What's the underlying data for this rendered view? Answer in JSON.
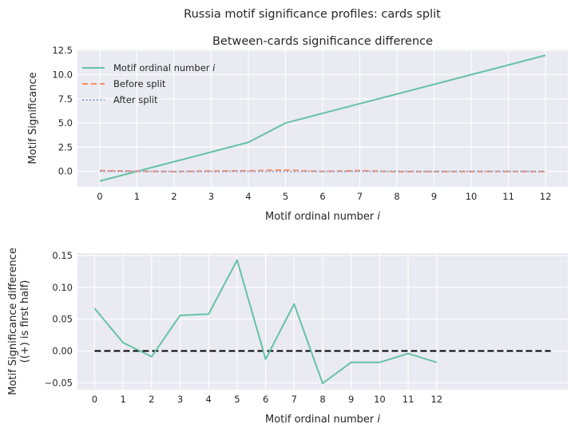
{
  "suptitle": "Russia motif significance profiles: cards split",
  "chart_data": [
    {
      "type": "line",
      "title": "Between-cards significance difference",
      "xlabel_text": "Motif ordinal number ",
      "xlabel_var": "i",
      "ylabel": "Motif Significance",
      "x": [
        0,
        1,
        2,
        3,
        4,
        5,
        6,
        7,
        8,
        9,
        10,
        11,
        12
      ],
      "xlim": [
        -0.6,
        12.6
      ],
      "ylim": [
        -1.6,
        12.6
      ],
      "xticks": [
        "0",
        "1",
        "2",
        "3",
        "4",
        "5",
        "6",
        "7",
        "8",
        "9",
        "10",
        "11",
        "12"
      ],
      "yticks": [
        {
          "v": 0,
          "label": "0.0"
        },
        {
          "v": 2.5,
          "label": "2.5"
        },
        {
          "v": 5,
          "label": "5.0"
        },
        {
          "v": 7.5,
          "label": "7.5"
        },
        {
          "v": 10,
          "label": "10.0"
        },
        {
          "v": 12.5,
          "label": "12.5"
        }
      ],
      "grid": true,
      "legend_position": "upper-left",
      "series": [
        {
          "name_text": "Motif ordinal number ",
          "name_var": "i",
          "color": "#66c2a5",
          "dash": "",
          "values": [
            -1,
            0,
            1,
            2,
            3,
            5,
            6,
            7,
            8,
            9,
            10,
            11,
            12
          ]
        },
        {
          "name_text": "Before split",
          "name_var": "",
          "color": "#fc8d62",
          "dash": "7 4",
          "values": [
            0.08,
            0.02,
            -0.02,
            0.04,
            0.06,
            0.14,
            -0.01,
            0.08,
            -0.04,
            -0.02,
            -0.02,
            -0.01,
            -0.02
          ]
        },
        {
          "name_text": "After split",
          "name_var": "",
          "color": "#8da0cb",
          "dash": "2 2.5",
          "values": [
            0.01,
            0.0,
            -0.01,
            -0.01,
            0.0,
            -0.01,
            0.0,
            0.0,
            0.01,
            0.0,
            0.0,
            0.0,
            0.0
          ]
        }
      ]
    },
    {
      "type": "line",
      "title": "",
      "xlabel_text": "Motif ordinal number ",
      "xlabel_var": "i",
      "ylabel_lines": [
        "Motif Significance difference",
        "((+) is first half)"
      ],
      "x": [
        0,
        1,
        2,
        3,
        4,
        5,
        6,
        7,
        8,
        9,
        10,
        11,
        12
      ],
      "xlim": [
        -0.6,
        16.6
      ],
      "ylim": [
        -0.061,
        0.154
      ],
      "xticks": [
        "0",
        "1",
        "2",
        "3",
        "4",
        "5",
        "6",
        "7",
        "8",
        "9",
        "10",
        "11",
        "12"
      ],
      "yticks": [
        {
          "v": -0.05,
          "label": "−0.05"
        },
        {
          "v": 0,
          "label": "0.00"
        },
        {
          "v": 0.05,
          "label": "0.05"
        },
        {
          "v": 0.1,
          "label": "0.10"
        },
        {
          "v": 0.15,
          "label": "0.15"
        }
      ],
      "grid": true,
      "series": [
        {
          "color": "#66c2a5",
          "dash": "",
          "values": [
            0.067,
            0.013,
            -0.009,
            0.056,
            0.058,
            0.143,
            -0.013,
            0.074,
            -0.051,
            -0.018,
            -0.018,
            -0.004,
            -0.018
          ]
        }
      ],
      "reference_line": {
        "y": 0,
        "x_from": 0,
        "x_to": 16,
        "color": "#000000",
        "dash": "8 4"
      }
    }
  ]
}
